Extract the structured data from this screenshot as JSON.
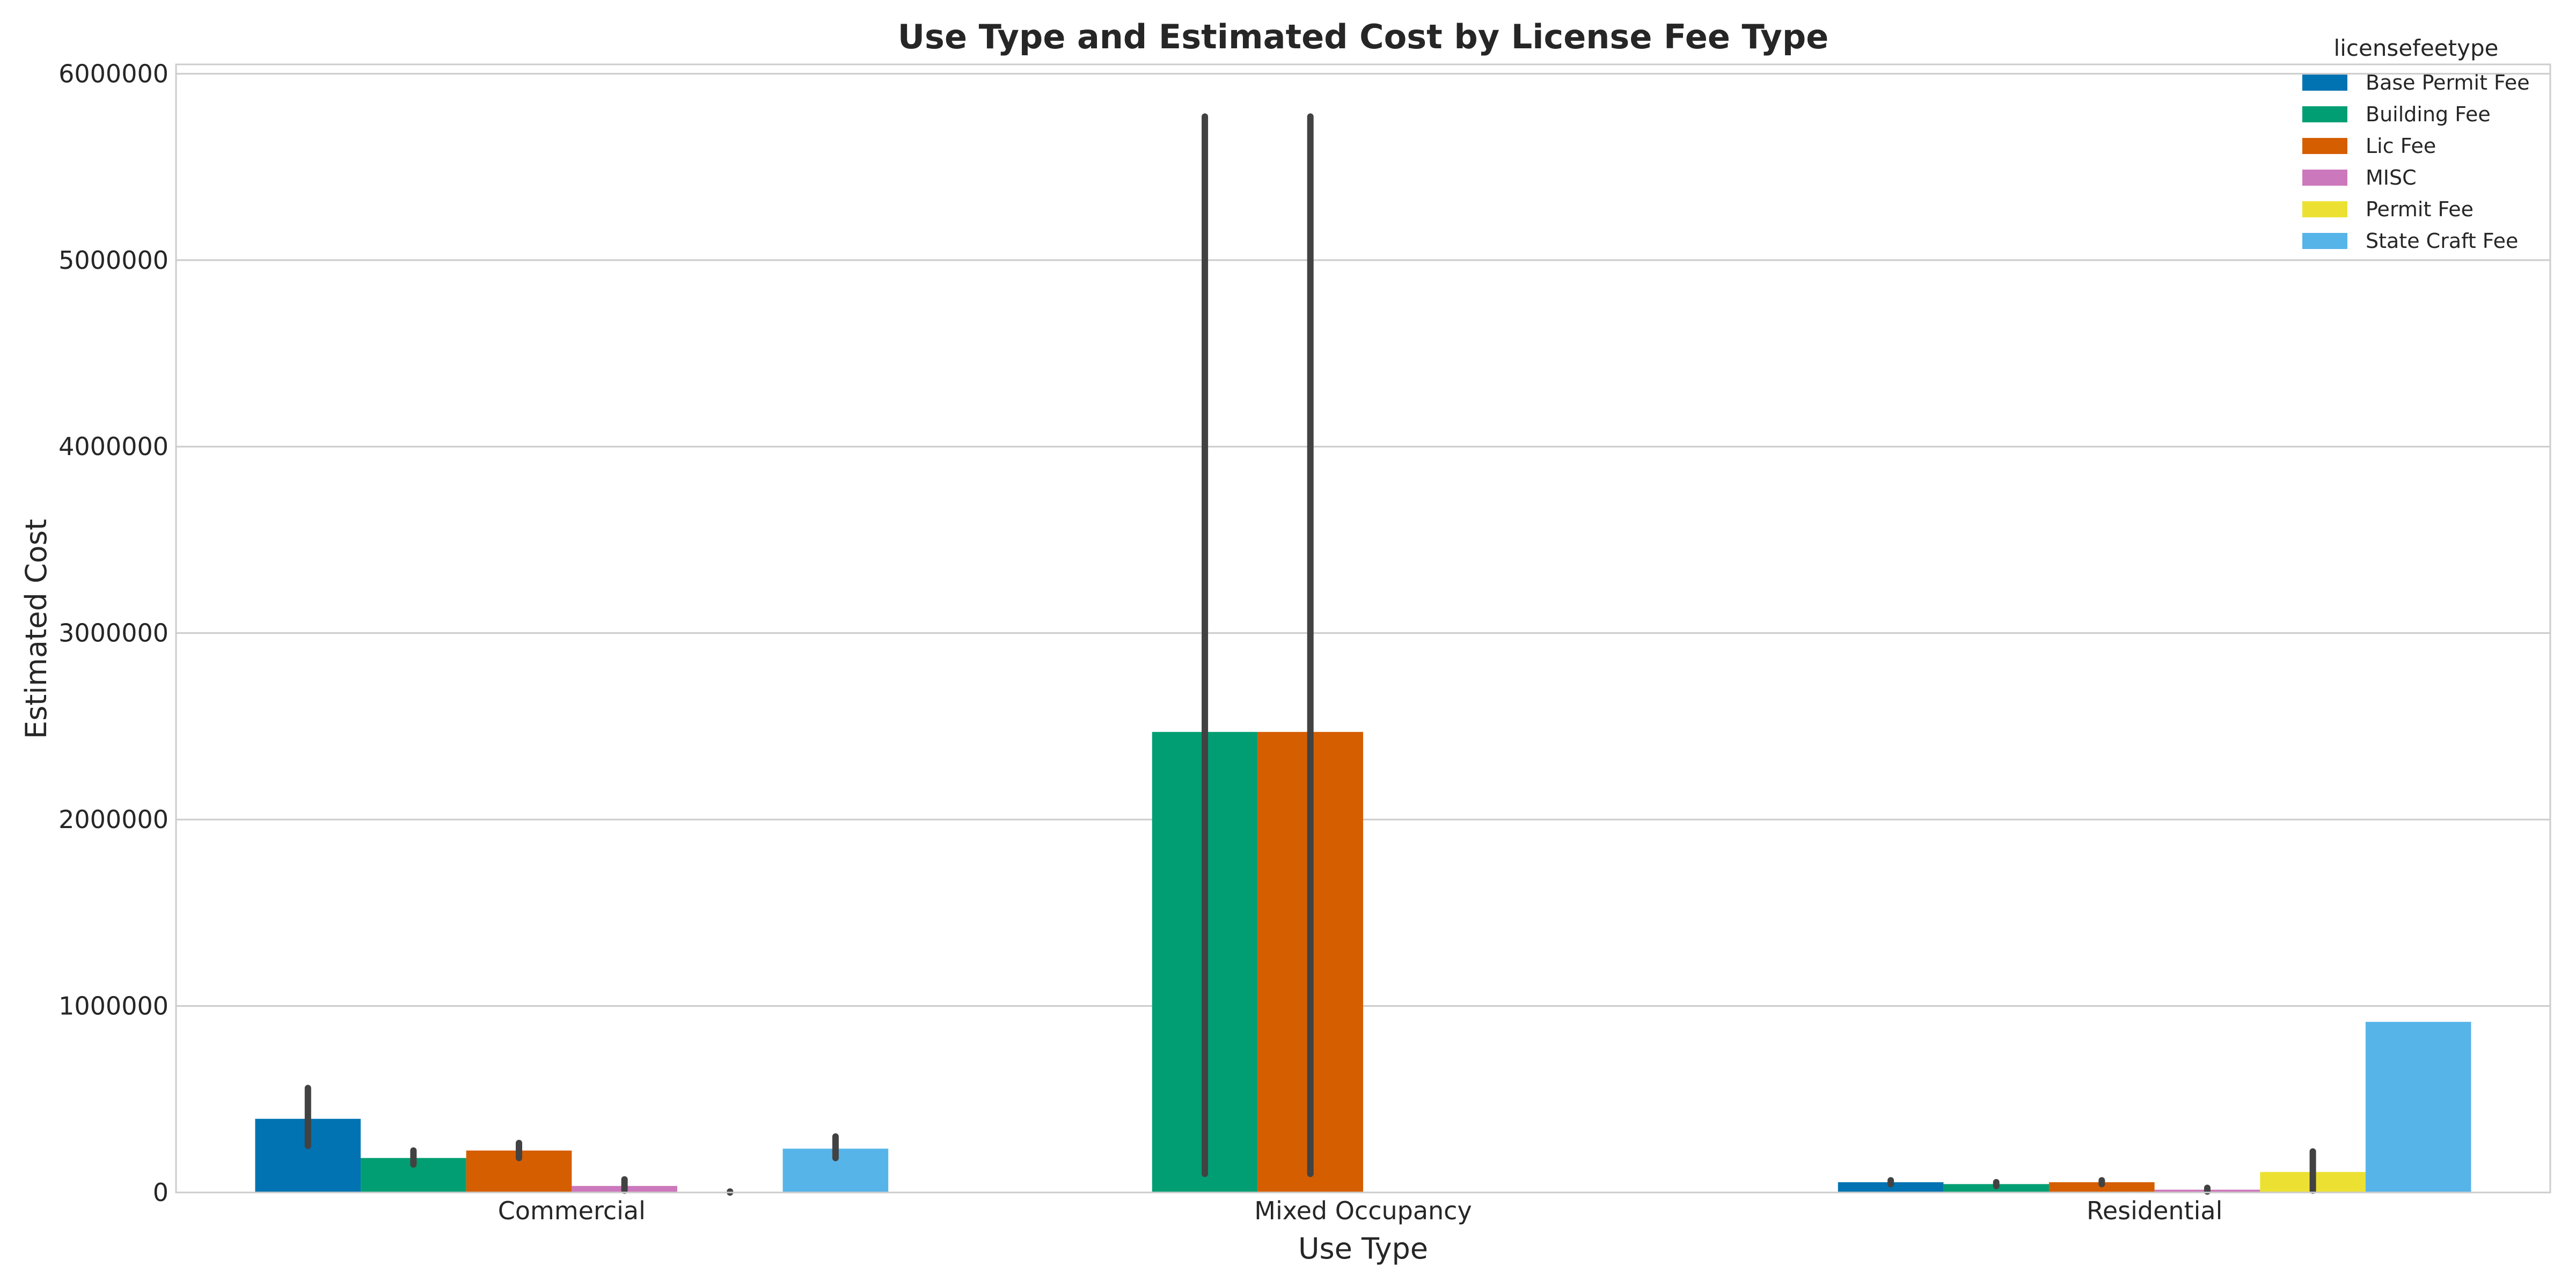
{
  "chart_data": {
    "type": "bar",
    "title": "Use Type and Estimated Cost by License Fee Type",
    "xlabel": "Use Type",
    "ylabel": "Estimated Cost",
    "categories": [
      "Commercial",
      "Mixed Occupancy",
      "Residential"
    ],
    "ylim": [
      0,
      6050000
    ],
    "yticks": [
      0,
      1000000,
      2000000,
      3000000,
      4000000,
      5000000,
      6000000
    ],
    "ytick_labels": [
      "0",
      "1000000",
      "2000000",
      "3000000",
      "4000000",
      "5000000",
      "6000000"
    ],
    "grid": true,
    "legend": {
      "title": "licensefeetype",
      "placement": "top-right"
    },
    "series": [
      {
        "name": "Base Permit Fee",
        "color": "#0173b2",
        "values": [
          395000,
          null,
          55000
        ],
        "error_low": [
          250000,
          null,
          45000
        ],
        "error_high": [
          560000,
          null,
          65000
        ]
      },
      {
        "name": "Building Fee",
        "color": "#029e73",
        "values": [
          185000,
          2470000,
          45000
        ],
        "error_low": [
          150000,
          100000,
          35000
        ],
        "error_high": [
          225000,
          5770000,
          55000
        ]
      },
      {
        "name": "Lic Fee",
        "color": "#d55e00",
        "values": [
          225000,
          2470000,
          55000
        ],
        "error_low": [
          185000,
          100000,
          45000
        ],
        "error_high": [
          265000,
          5770000,
          65000
        ]
      },
      {
        "name": "MISC",
        "color": "#cc78bc",
        "values": [
          35000,
          null,
          15000
        ],
        "error_low": [
          10000,
          null,
          5000
        ],
        "error_high": [
          70000,
          null,
          25000
        ]
      },
      {
        "name": "Permit Fee",
        "color": "#ece133",
        "values": [
          2000,
          null,
          110000
        ],
        "error_low": [
          0,
          null,
          10000
        ],
        "error_high": [
          5000,
          null,
          220000
        ]
      },
      {
        "name": "State Craft Fee",
        "color": "#56b4e9",
        "values": [
          235000,
          null,
          915000
        ],
        "error_low": [
          185000,
          null,
          915000
        ],
        "error_high": [
          300000,
          null,
          915000
        ]
      }
    ]
  }
}
